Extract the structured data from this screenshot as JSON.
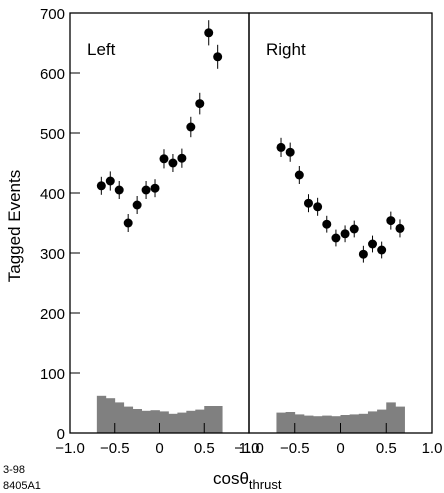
{
  "chart_data": {
    "type": "scatter",
    "ylabel": "Tagged Events",
    "xlabel": {
      "main": "cosθ",
      "sub": "thrust"
    },
    "ylim": [
      0,
      700
    ],
    "yticks": [
      0,
      100,
      200,
      300,
      400,
      500,
      600,
      700
    ],
    "xlim": [
      -1.0,
      1.0
    ],
    "xticks": [
      -1.0,
      -0.5,
      0,
      0.5,
      1.0
    ],
    "xtick_labels": [
      "−1.0",
      "−0.5",
      "0",
      "0.5",
      "1.0"
    ],
    "panels": [
      {
        "name": "Left",
        "points": {
          "x": [
            -0.65,
            -0.55,
            -0.45,
            -0.35,
            -0.25,
            -0.15,
            -0.05,
            0.05,
            0.15,
            0.25,
            0.35,
            0.45,
            0.55,
            0.65
          ],
          "y": [
            412,
            420,
            405,
            350,
            380,
            405,
            408,
            457,
            450,
            458,
            510,
            549,
            667,
            627
          ],
          "err": [
            15,
            16,
            15,
            15,
            15,
            15,
            15,
            16,
            15,
            16,
            17,
            18,
            21,
            20
          ]
        },
        "histogram": {
          "bin_edges": [
            -0.7,
            -0.6,
            -0.5,
            -0.4,
            -0.3,
            -0.2,
            -0.1,
            0.0,
            0.1,
            0.2,
            0.3,
            0.4,
            0.5,
            0.6,
            0.7
          ],
          "values": [
            62,
            58,
            51,
            44,
            40,
            37,
            38,
            36,
            32,
            34,
            37,
            39,
            45,
            45
          ]
        }
      },
      {
        "name": "Right",
        "points": {
          "x": [
            -0.65,
            -0.55,
            -0.45,
            -0.35,
            -0.25,
            -0.15,
            -0.05,
            0.05,
            0.15,
            0.25,
            0.35,
            0.45,
            0.55,
            0.65
          ],
          "y": [
            476,
            468,
            430,
            383,
            377,
            348,
            325,
            332,
            340,
            298,
            315,
            305,
            354,
            341
          ],
          "err": [
            16,
            16,
            15,
            15,
            15,
            14,
            14,
            14,
            14,
            14,
            14,
            14,
            15,
            15
          ]
        },
        "histogram": {
          "bin_edges": [
            -0.7,
            -0.6,
            -0.5,
            -0.4,
            -0.3,
            -0.2,
            -0.1,
            0.0,
            0.1,
            0.2,
            0.3,
            0.4,
            0.5,
            0.6,
            0.7
          ],
          "values": [
            34,
            35,
            31,
            29,
            28,
            29,
            28,
            30,
            31,
            32,
            36,
            39,
            51,
            44
          ]
        }
      }
    ],
    "colors": {
      "points": "#000000",
      "histogram_fill": "#808080",
      "frame": "#000000"
    },
    "grid": false,
    "legend": null
  },
  "footnote": {
    "line1": "3-98",
    "line2": "8405A1"
  }
}
